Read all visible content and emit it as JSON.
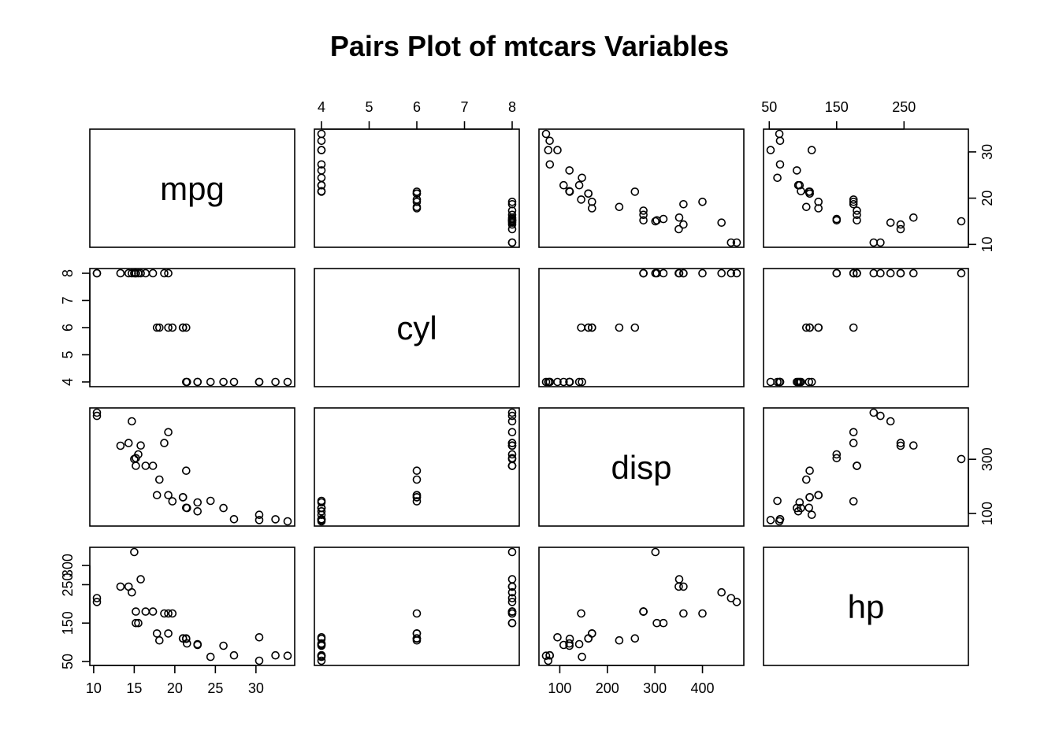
{
  "chart_data": {
    "type": "scatter",
    "subtype": "pairs",
    "title": "Pairs Plot of mtcars Variables",
    "variables": [
      "mpg",
      "cyl",
      "disp",
      "hp"
    ],
    "ranges": {
      "mpg": [
        10.4,
        33.9
      ],
      "cyl": [
        4,
        8
      ],
      "disp": [
        71.1,
        472
      ],
      "hp": [
        52,
        335
      ]
    },
    "ticks": {
      "mpg": [
        10,
        20,
        30
      ],
      "cyl": [
        4,
        5,
        6,
        7,
        8
      ],
      "disp": [
        100,
        300
      ],
      "hp": [
        50,
        150,
        250
      ]
    },
    "tick_labels": {
      "top": {
        "cyl": [
          "4",
          "5",
          "6",
          "7",
          "8"
        ],
        "hp": [
          "50",
          "150",
          "250"
        ]
      },
      "bottom": {
        "mpg": [
          "10",
          "15",
          "20",
          "25",
          "30"
        ],
        "disp": [
          "100",
          "200",
          "300",
          "400"
        ]
      },
      "left": {
        "cyl": [
          "4",
          "5",
          "6",
          "7",
          "8"
        ],
        "hp": [
          "50",
          "150",
          "250",
          "300"
        ]
      },
      "right": {
        "mpg": [
          "10",
          "20",
          "30"
        ],
        "disp": [
          "100",
          "300"
        ]
      }
    },
    "data": {
      "mpg": [
        21.0,
        21.0,
        22.8,
        21.4,
        18.7,
        18.1,
        14.3,
        24.4,
        22.8,
        19.2,
        17.8,
        16.4,
        17.3,
        15.2,
        10.4,
        10.4,
        14.7,
        32.4,
        30.4,
        33.9,
        21.5,
        15.5,
        15.2,
        13.3,
        19.2,
        27.3,
        26.0,
        30.4,
        15.8,
        19.7,
        15.0,
        21.4
      ],
      "cyl": [
        6,
        6,
        4,
        6,
        8,
        6,
        8,
        4,
        4,
        6,
        6,
        8,
        8,
        8,
        8,
        8,
        8,
        4,
        4,
        4,
        4,
        8,
        8,
        8,
        8,
        4,
        4,
        4,
        8,
        6,
        8,
        4
      ],
      "disp": [
        160,
        160,
        108,
        258,
        360,
        225,
        360,
        146.7,
        140.8,
        167.6,
        167.6,
        275.8,
        275.8,
        275.8,
        472,
        460,
        440,
        78.7,
        75.7,
        71.1,
        120.1,
        318,
        304,
        350,
        400,
        79,
        120.3,
        95.1,
        351,
        145,
        301,
        121
      ],
      "hp": [
        110,
        110,
        93,
        110,
        175,
        105,
        245,
        62,
        95,
        123,
        123,
        180,
        180,
        180,
        205,
        215,
        230,
        66,
        52,
        65,
        97,
        150,
        150,
        245,
        175,
        66,
        91,
        113,
        264,
        175,
        335,
        109
      ]
    }
  }
}
